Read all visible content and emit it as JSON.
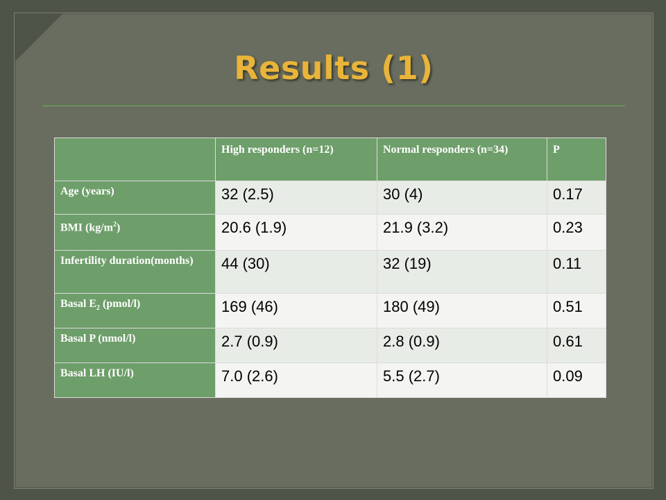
{
  "title": "Results (1)",
  "table": {
    "headers": [
      "",
      "High responders (n=12)",
      "Normal responders (n=34)",
      "P"
    ],
    "rows": [
      {
        "label": "Age (years)",
        "high": "32 (2.5)",
        "normal": "30 (4)",
        "p": "0.17"
      },
      {
        "label_pre": "BMI (kg/m",
        "label_sup": "2",
        "label_post": ")",
        "high": "20.6 (1.9)",
        "normal": "21.9 (3.2)",
        "p": "0.23"
      },
      {
        "label": "Infertility duration(months)",
        "high": "44 (30)",
        "normal": "32 (19)",
        "p": "0.11"
      },
      {
        "label_pre": "Basal E",
        "label_sub": "2",
        "label_post": " (pmol/l)",
        "high": "169 (46)",
        "normal": "180 (49)",
        "p": "0.51"
      },
      {
        "label": "Basal P (nmol/l)",
        "high": "2.7 (0.9)",
        "normal": "2.8 (0.9)",
        "p": "0.61"
      },
      {
        "label": "Basal LH (IU/l)",
        "high": "7.0 (2.6)",
        "normal": "5.5 (2.7)",
        "p": "0.09"
      }
    ]
  },
  "colors": {
    "title": "#e8b43a",
    "header_green": "#6e9e6a",
    "slide_bg": "#696d5f"
  }
}
